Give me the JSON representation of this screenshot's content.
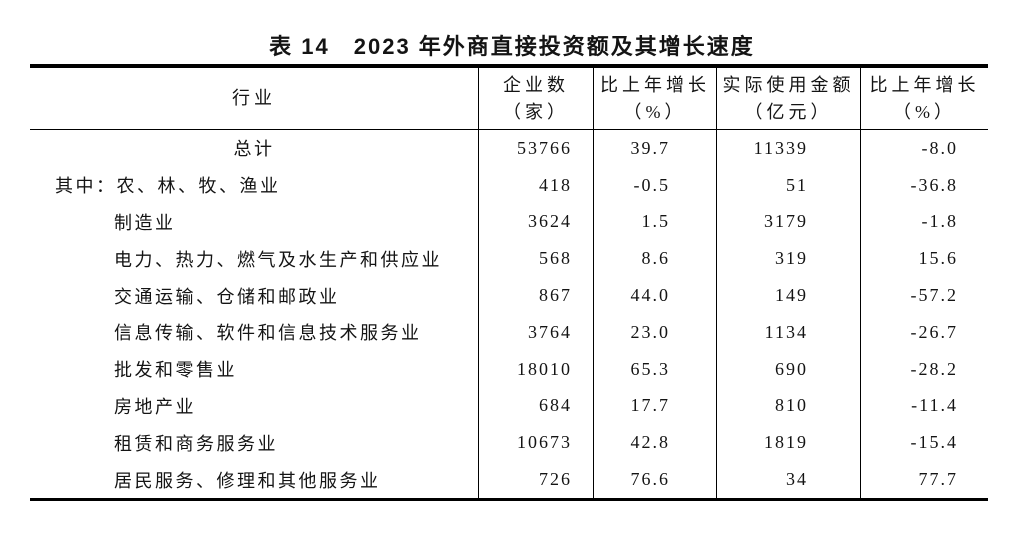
{
  "title": "表 14　2023 年外商直接投资额及其增长速度",
  "table": {
    "headers": {
      "industry": "行业",
      "enterprises_l1": "企业数",
      "enterprises_l2": "（家）",
      "growth1_l1": "比上年增长",
      "growth1_l2": "（%）",
      "amount_l1": "实际使用金额",
      "amount_l2": "（亿元）",
      "growth2_l1": "比上年增长",
      "growth2_l2": "（%）"
    },
    "rows": [
      {
        "industry": "总计",
        "enterprises": "53766",
        "growth1": "39.7",
        "amount": "11339",
        "growth2": "-8.0"
      },
      {
        "prefix": "其中：",
        "industry": "农、林、牧、渔业",
        "enterprises": "418",
        "growth1": "-0.5",
        "amount": "51",
        "growth2": "-36.8"
      },
      {
        "industry": "制造业",
        "enterprises": "3624",
        "growth1": "1.5",
        "amount": "3179",
        "growth2": "-1.8"
      },
      {
        "industry": "电力、热力、燃气及水生产和供应业",
        "enterprises": "568",
        "growth1": "8.6",
        "amount": "319",
        "growth2": "15.6"
      },
      {
        "industry": "交通运输、仓储和邮政业",
        "enterprises": "867",
        "growth1": "44.0",
        "amount": "149",
        "growth2": "-57.2"
      },
      {
        "industry": "信息传输、软件和信息技术服务业",
        "enterprises": "3764",
        "growth1": "23.0",
        "amount": "1134",
        "growth2": "-26.7"
      },
      {
        "industry": "批发和零售业",
        "enterprises": "18010",
        "growth1": "65.3",
        "amount": "690",
        "growth2": "-28.2"
      },
      {
        "industry": "房地产业",
        "enterprises": "684",
        "growth1": "17.7",
        "amount": "810",
        "growth2": "-11.4"
      },
      {
        "industry": "租赁和商务服务业",
        "enterprises": "10673",
        "growth1": "42.8",
        "amount": "1819",
        "growth2": "-15.4"
      },
      {
        "industry": "居民服务、修理和其他服务业",
        "enterprises": "726",
        "growth1": "76.6",
        "amount": "34",
        "growth2": "77.7"
      }
    ]
  }
}
